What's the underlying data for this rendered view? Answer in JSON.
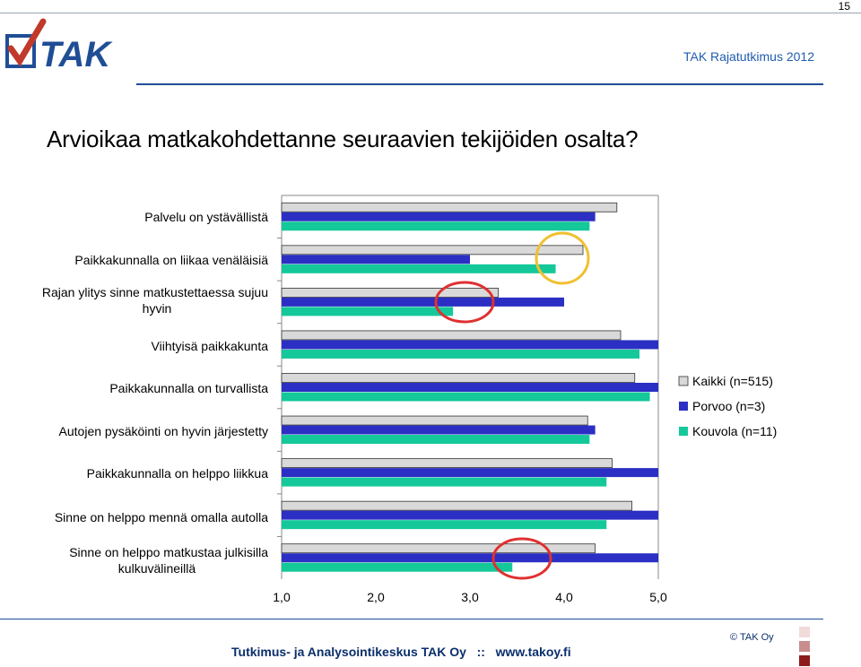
{
  "page_number": "15",
  "report_title": "TAK Rajatutkimus 2012",
  "heading": "Arvioikaa matkakohdettanne seuraavien tekijöiden osalta?",
  "footer": {
    "org": "Tutkimus- ja Analysointikeskus TAK Oy   ::   www.takoy.fi",
    "copyright": "© TAK Oy"
  },
  "colors": {
    "kaikki": "#d9d9d9",
    "porvoo": "#2b2fc4",
    "kouvola": "#14c89a",
    "header_blue": "#1f4e96",
    "circle_red": "#e03030",
    "circle_yellow": "#f0c030"
  },
  "chart_data": {
    "type": "bar",
    "orientation": "horizontal",
    "categories": [
      "Palvelu on ystävällistä",
      "Paikkakunnalla on liikaa venäläisiä",
      "Rajan ylitys sinne matkustettaessa sujuu hyvin",
      "Viihtyisä paikkakunta",
      "Paikkakunnalla on turvallista",
      "Autojen pysäköinti on hyvin järjestetty",
      "Paikkakunnalla on helppo liikkua",
      "Sinne on helppo mennä omalla autolla",
      "Sinne on helppo matkustaa julkisilla kulkuvälineillä"
    ],
    "series": [
      {
        "name": "Kaikki (n=515)",
        "values": [
          4.56,
          4.2,
          3.3,
          4.6,
          4.75,
          4.25,
          4.51,
          4.72,
          4.33
        ]
      },
      {
        "name": "Porvoo (n=3)",
        "values": [
          4.33,
          3.0,
          4.0,
          5.0,
          5.0,
          4.33,
          5.0,
          5.0,
          5.0
        ]
      },
      {
        "name": "Kouvola (n=11)",
        "values": [
          4.27,
          3.91,
          2.82,
          4.8,
          4.91,
          4.27,
          4.45,
          4.45,
          3.45
        ]
      }
    ],
    "xlim": [
      1.0,
      5.0
    ],
    "xticks": [
      "1,0",
      "2,0",
      "3,0",
      "4,0",
      "5,0"
    ],
    "legend": "right",
    "annotations": [
      {
        "shape": "circle",
        "color": "red",
        "category_index": 2,
        "value": 2.82
      },
      {
        "shape": "circle",
        "color": "yellow",
        "category_index": 1,
        "value": 3.91
      },
      {
        "shape": "circle",
        "color": "red",
        "category_index": 8,
        "value": 3.45
      }
    ]
  }
}
